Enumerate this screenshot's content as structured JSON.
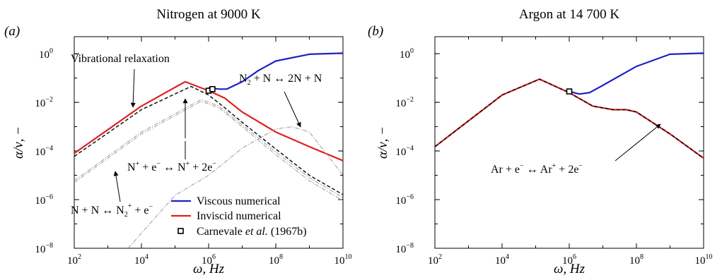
{
  "chart_data": [
    {
      "type": "line",
      "panel_label": "(a)",
      "title": "Nitrogen at 9000 K",
      "xlabel": "ω, Hz",
      "ylabel": "α/ν, −",
      "x_scale": "log",
      "y_scale": "log",
      "xlim": [
        100,
        10000000000
      ],
      "ylim": [
        1e-08,
        5
      ],
      "x_ticks": [
        {
          "base": "10",
          "exp": "2"
        },
        {
          "base": "10",
          "exp": "4"
        },
        {
          "base": "10",
          "exp": "6"
        },
        {
          "base": "10",
          "exp": "8"
        },
        {
          "base": "10",
          "exp": "10"
        }
      ],
      "y_ticks": [
        {
          "base": "10",
          "exp": "−8"
        },
        {
          "base": "10",
          "exp": "−6"
        },
        {
          "base": "10",
          "exp": "−4"
        },
        {
          "base": "10",
          "exp": "−2"
        },
        {
          "base": "10",
          "exp": "0"
        }
      ],
      "legend": {
        "placement": "bottom-right",
        "entries": [
          {
            "label": "Viscous numerical",
            "color": "#1f1fc8",
            "style": "solid"
          },
          {
            "label": "Inviscid numerical",
            "color": "#e02020",
            "style": "solid"
          },
          {
            "label_pre": "Carnevale ",
            "label_em": "et al.",
            "label_post": " (1967b)",
            "marker": "square"
          }
        ]
      },
      "annotations": {
        "vib": "Vibrational relaxation",
        "diss": {
          "pre": "N",
          "sub": "2",
          "post": " + N ↔ 2N + N"
        },
        "ion1": {
          "a": "N",
          "a_sup": "+",
          "b": " + e",
          "b_sup": "−",
          "c": " ↔ N",
          "c_sup": "+",
          "d": " + 2e",
          "d_sup": "−"
        },
        "ion2": {
          "a": "N + N ↔ N",
          "a_sub": "2",
          "a_sup": "+",
          "b": " + e",
          "b_sup": "−"
        }
      },
      "series": [
        {
          "id": "inviscid",
          "color": "#e02020",
          "style": "solid",
          "points": [
            [
              100,
              8e-05
            ],
            [
              10000,
              0.007
            ],
            [
              200000,
              0.07
            ],
            [
              1000000,
              0.03
            ],
            [
              3000000,
              0.015
            ],
            [
              10000000,
              0.004
            ],
            [
              100000000,
              0.0006
            ],
            [
              1000000000,
              0.00015
            ],
            [
              10000000000,
              4e-05
            ]
          ]
        },
        {
          "id": "viscous",
          "name": "Viscous numerical",
          "color": "#1f1fc8",
          "style": "solid",
          "points": [
            [
              1000000,
              0.04
            ],
            [
              2000000,
              0.035
            ],
            [
              3500000,
              0.035
            ],
            [
              10000000,
              0.07
            ],
            [
              30000000,
              0.2
            ],
            [
              100000000,
              0.5
            ],
            [
              1000000000,
              0.95
            ],
            [
              10000000000,
              1.05
            ]
          ]
        },
        {
          "id": "dashed",
          "color": "#111111",
          "style": "dashed",
          "points": [
            [
              100,
              6e-05
            ],
            [
              10000,
              0.005
            ],
            [
              300000,
              0.045
            ],
            [
              1000000,
              0.02
            ],
            [
              3000000,
              0.006
            ],
            [
              10000000,
              0.0015
            ],
            [
              100000000,
              0.00012
            ],
            [
              1000000000,
              1e-05
            ],
            [
              10000000000,
              1.6e-06
            ]
          ]
        },
        {
          "id": "mode1",
          "color": "#9a9a9a",
          "style": "dashdot",
          "points": [
            [
              100,
              6e-06
            ],
            [
              10000,
              0.0006
            ],
            [
              600000,
              0.013
            ],
            [
              2000000,
              0.007
            ],
            [
              10000000,
              0.0012
            ],
            [
              100000000,
              9e-05
            ],
            [
              1000000000,
              8e-06
            ],
            [
              10000000000,
              1.2e-06
            ]
          ]
        },
        {
          "id": "mode2",
          "color": "#9a9a9a",
          "style": "dashdot",
          "points": [
            [
              100,
              5e-06
            ],
            [
              10000,
              0.0005
            ],
            [
              600000,
              0.011
            ],
            [
              2000000,
              0.006
            ],
            [
              10000000,
              0.001
            ],
            [
              100000000,
              7e-05
            ],
            [
              1000000000,
              6e-06
            ],
            [
              10000000000,
              9e-07
            ]
          ]
        },
        {
          "id": "mode3",
          "color": "#9a9a9a",
          "style": "dashdot",
          "points": [
            [
              4000,
              1e-08
            ],
            [
              100000,
              1.5e-06
            ],
            [
              1000000,
              1e-05
            ],
            [
              10000000,
              0.00013
            ],
            [
              100000000,
              0.0008
            ],
            [
              300000000,
              0.001
            ],
            [
              1000000000,
              0.0006
            ],
            [
              10000000000,
              1e-05
            ]
          ]
        }
      ],
      "markers": [
        [
          1000000,
          0.03
        ],
        [
          1300000,
          0.035
        ]
      ]
    },
    {
      "type": "line",
      "panel_label": "(b)",
      "title": "Argon at 14  700 K",
      "xlabel": "ω, Hz",
      "ylabel": "α/ν, −",
      "x_scale": "log",
      "y_scale": "log",
      "xlim": [
        100,
        10000000000
      ],
      "ylim": [
        1e-08,
        5
      ],
      "x_ticks": [
        {
          "base": "10",
          "exp": "2"
        },
        {
          "base": "10",
          "exp": "4"
        },
        {
          "base": "10",
          "exp": "6"
        },
        {
          "base": "10",
          "exp": "8"
        },
        {
          "base": "10",
          "exp": "10"
        }
      ],
      "y_ticks": [
        {
          "base": "10",
          "exp": "−8"
        },
        {
          "base": "10",
          "exp": "−6"
        },
        {
          "base": "10",
          "exp": "−4"
        },
        {
          "base": "10",
          "exp": "−2"
        },
        {
          "base": "10",
          "exp": "0"
        }
      ],
      "annotations": {
        "ion": {
          "a": "Ar + e",
          "a_sup": "−",
          "b": " ↔ Ar",
          "b_sup": "+",
          "c": " + 2e",
          "c_sup": "−"
        }
      },
      "series": [
        {
          "id": "inviscid",
          "color": "#e02020",
          "style": "solid",
          "points": [
            [
              100,
              0.00015
            ],
            [
              10000,
              0.02
            ],
            [
              130000,
              0.09
            ],
            [
              1000000,
              0.025
            ],
            [
              5000000,
              0.007
            ],
            [
              20000000,
              0.005
            ],
            [
              50000000,
              0.005
            ],
            [
              100000000,
              0.004
            ],
            [
              1000000000,
              0.0005
            ],
            [
              10000000000,
              5e-05
            ]
          ]
        },
        {
          "id": "dashed",
          "color": "#111111",
          "style": "dashed",
          "points": [
            [
              100,
              0.00015
            ],
            [
              10000,
              0.02
            ],
            [
              130000,
              0.09
            ],
            [
              1000000,
              0.025
            ],
            [
              5000000,
              0.007
            ],
            [
              20000000,
              0.005
            ],
            [
              50000000,
              0.005
            ],
            [
              100000000,
              0.004
            ],
            [
              1000000000,
              0.0005
            ],
            [
              10000000000,
              5e-05
            ]
          ]
        },
        {
          "id": "viscous",
          "color": "#1f1fc8",
          "style": "solid",
          "points": [
            [
              1000000,
              0.028
            ],
            [
              2000000,
              0.022
            ],
            [
              4000000,
              0.025
            ],
            [
              10000000,
              0.05
            ],
            [
              100000000,
              0.3
            ],
            [
              1000000000,
              0.95
            ],
            [
              10000000000,
              1.05
            ]
          ]
        }
      ],
      "markers": [
        [
          1000000,
          0.028
        ]
      ]
    }
  ]
}
